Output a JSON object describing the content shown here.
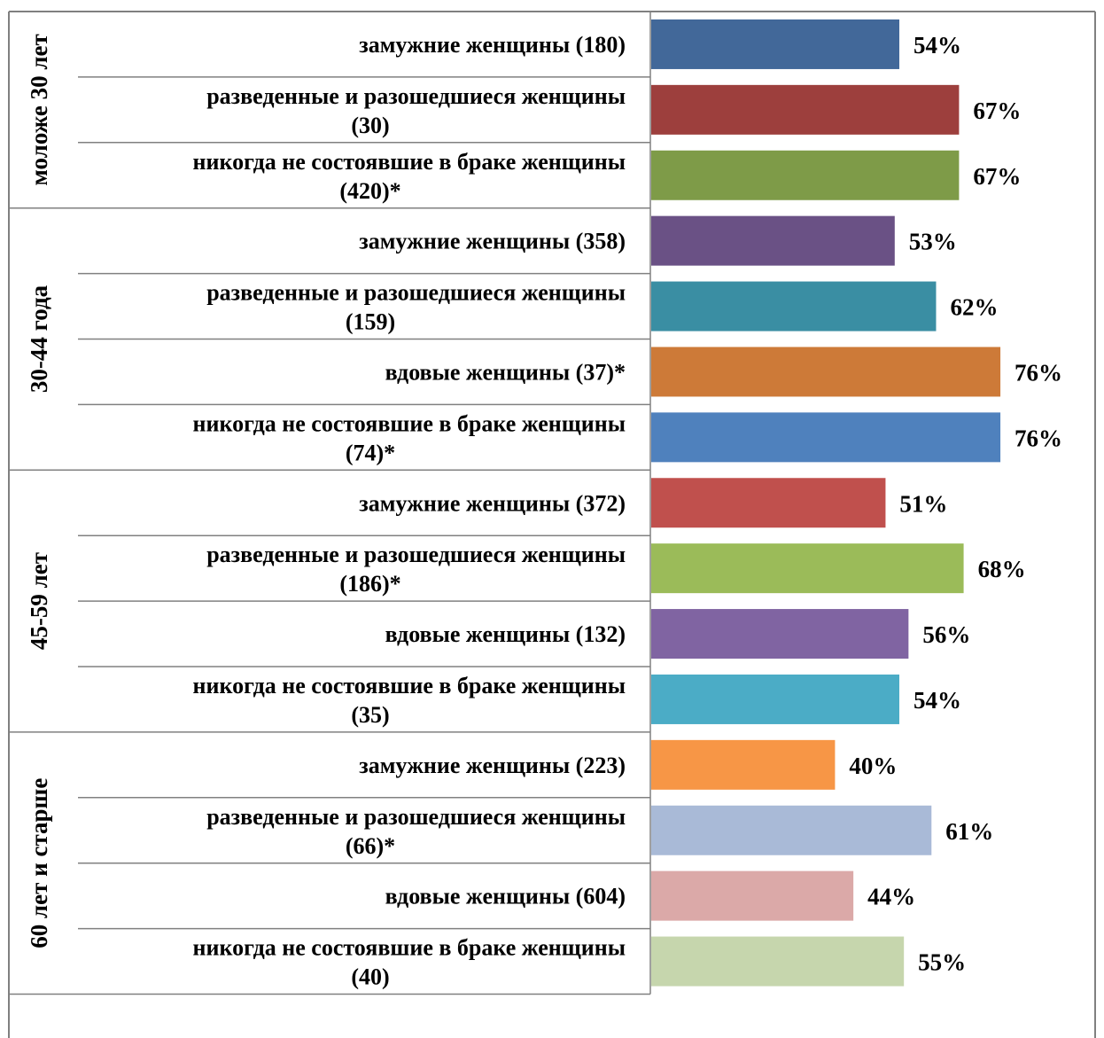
{
  "chart_data": {
    "type": "bar",
    "orientation": "horizontal",
    "xlim": [
      0,
      100
    ],
    "groups": [
      {
        "label": "моложе 30 лет",
        "items": [
          {
            "label": [
              "замужние женщины (180)"
            ],
            "value": 54,
            "value_label": "54%",
            "color": "#426899"
          },
          {
            "label": [
              "разведенные и разошедшиеся женщины",
              "(30)"
            ],
            "value": 67,
            "value_label": "67%",
            "color": "#9d3f3d"
          },
          {
            "label": [
              "никогда не состоявшие в браке женщины",
              "(420)*"
            ],
            "value": 67,
            "value_label": "67%",
            "color": "#7e9b48"
          }
        ]
      },
      {
        "label": "30-44 года",
        "items": [
          {
            "label": [
              "замужние женщины (358)"
            ],
            "value": 53,
            "value_label": "53%",
            "color": "#6a5185"
          },
          {
            "label": [
              "разведенные и разошедшиеся женщины",
              "(159)"
            ],
            "value": 62,
            "value_label": "62%",
            "color": "#3a8ea3"
          },
          {
            "label": [
              "вдовые женщины (37)*"
            ],
            "value": 76,
            "value_label": "76%",
            "color": "#cd7a38"
          },
          {
            "label": [
              "никогда не состоявшие в браке женщины",
              "(74)*"
            ],
            "value": 76,
            "value_label": "76%",
            "color": "#4f81bd"
          }
        ]
      },
      {
        "label": "45-59 лет",
        "items": [
          {
            "label": [
              "замужние женщины (372)"
            ],
            "value": 51,
            "value_label": "51%",
            "color": "#c0504d"
          },
          {
            "label": [
              "разведенные и разошедшиеся женщины",
              "(186)*"
            ],
            "value": 68,
            "value_label": "68%",
            "color": "#9bbb59"
          },
          {
            "label": [
              "вдовые женщины (132)"
            ],
            "value": 56,
            "value_label": "56%",
            "color": "#8064a2"
          },
          {
            "label": [
              "никогда не состоявшие в браке женщины",
              "(35)"
            ],
            "value": 54,
            "value_label": "54%",
            "color": "#4bacc6"
          }
        ]
      },
      {
        "label": "60 лет и старше",
        "items": [
          {
            "label": [
              "замужние женщины (223)"
            ],
            "value": 40,
            "value_label": "40%",
            "color": "#f79646"
          },
          {
            "label": [
              "разведенные и разошедшиеся женщины",
              "(66)*"
            ],
            "value": 61,
            "value_label": "61%",
            "color": "#a9bad7"
          },
          {
            "label": [
              "вдовые женщины (604)"
            ],
            "value": 44,
            "value_label": "44%",
            "color": "#dba9a8"
          },
          {
            "label": [
              "никогда не состоявшие в браке женщины",
              "(40)"
            ],
            "value": 55,
            "value_label": "55%",
            "color": "#c6d6ad"
          }
        ]
      }
    ]
  }
}
